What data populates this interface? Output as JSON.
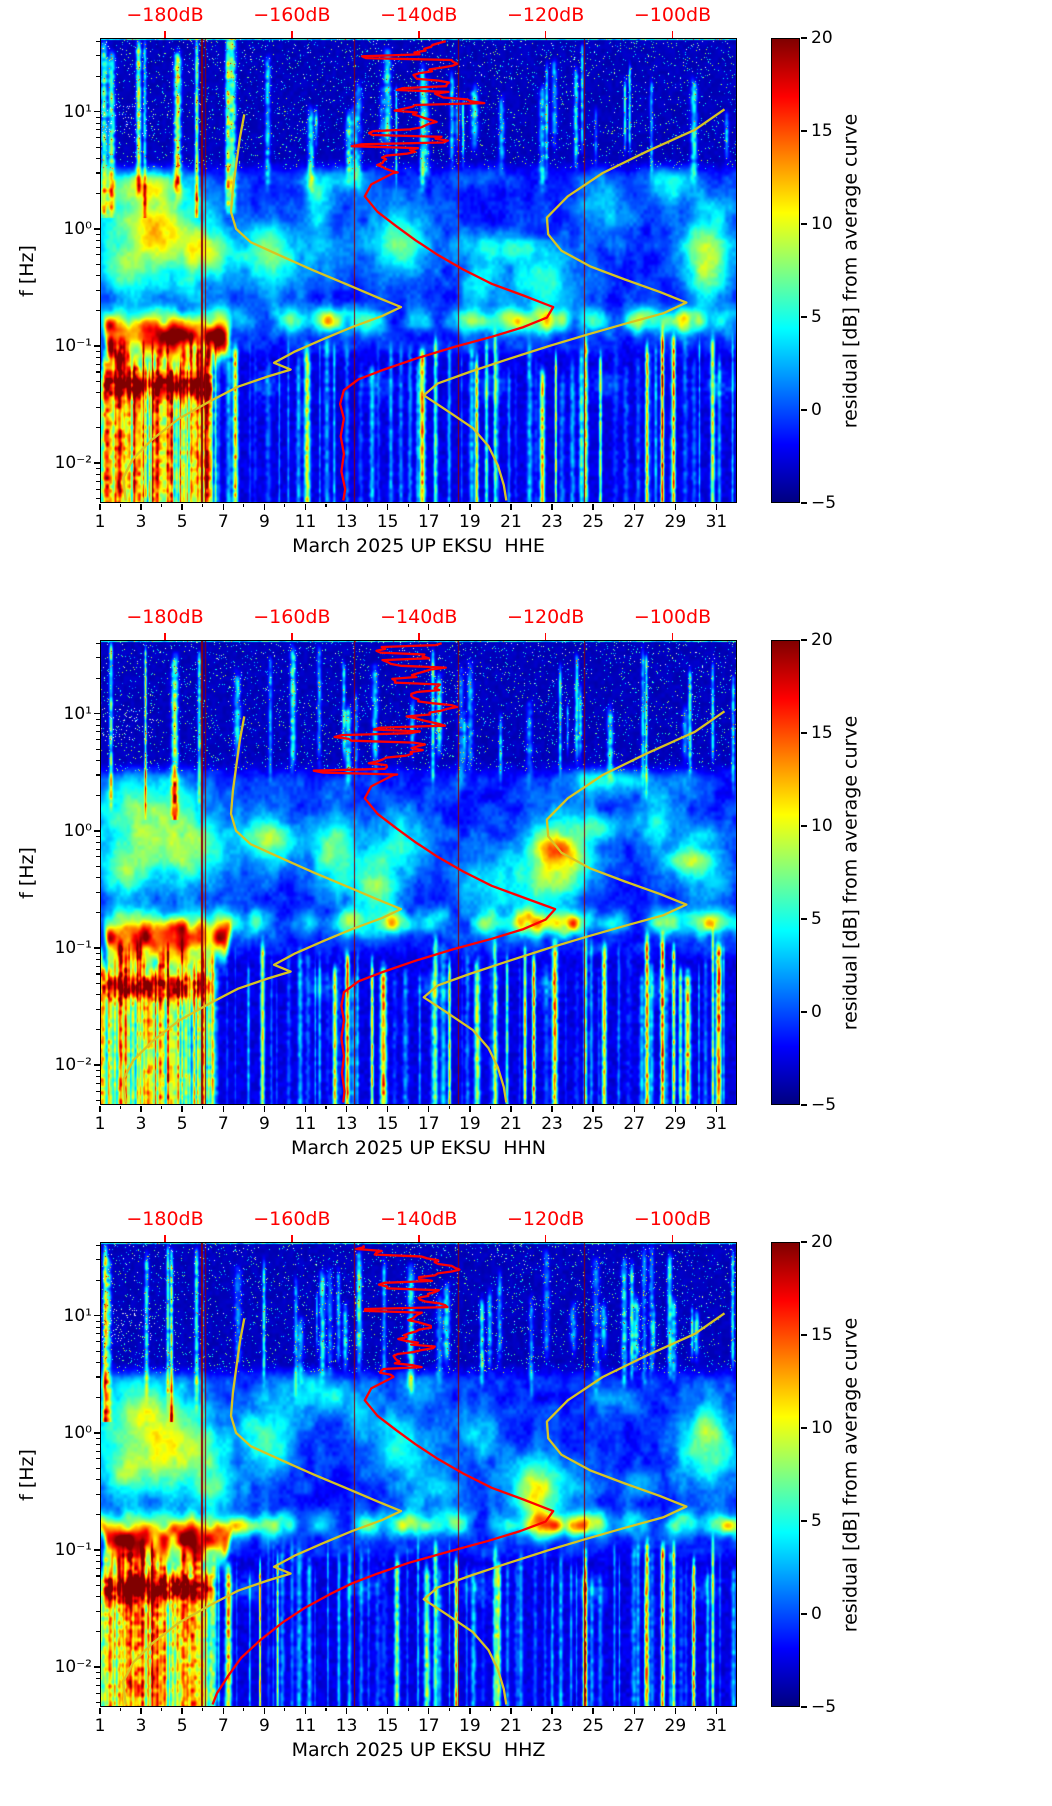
{
  "colors": {
    "background": "#ffffff",
    "axis_text": "#000000",
    "top_axis_label": "#ff0000",
    "average_curve": "#ff0000",
    "noise_model_curve": "#d8c422",
    "calibration_line": "#8b0008",
    "colormap": "jet"
  },
  "chart_data": {
    "type": "heatmap",
    "figure": "3-panel spectrogram of PSD residuals, March 2025, station UP EKSU, channels HHE / HHN / HHZ",
    "x_axis": {
      "ticks": [
        1,
        3,
        5,
        7,
        9,
        11,
        13,
        15,
        17,
        19,
        21,
        23,
        25,
        27,
        29,
        31
      ],
      "minor_ticks": [
        2,
        4,
        6,
        8,
        10,
        12,
        14,
        16,
        18,
        20,
        22,
        24,
        26,
        28,
        30
      ],
      "range_days": [
        1,
        32
      ]
    },
    "y_axis": {
      "label": "f [Hz]",
      "scale": "log",
      "tick_labels": [
        "10¹",
        "10⁰",
        "10⁻¹",
        "10⁻²"
      ],
      "tick_exponents": [
        1,
        0,
        -1,
        -2
      ],
      "range_hz": [
        0.0046,
        42.7
      ]
    },
    "top_axis": {
      "labels": [
        "−180dB",
        "−160dB",
        "−140dB",
        "−120dB",
        "−100dB"
      ],
      "tick_db": [
        -180,
        -160,
        -140,
        -120,
        -100
      ],
      "range_db": [
        -190.25,
        -89.83
      ]
    },
    "colorbar": {
      "title": "residual [dB] from average curve",
      "vmin": -5,
      "vmax": 20,
      "ticks": [
        20,
        15,
        10,
        5,
        0,
        -5
      ],
      "tick_labels": [
        "20",
        "15",
        "10",
        "5",
        "0",
        "−5"
      ]
    },
    "noise_model_curves": {
      "low": [
        [
          9.5,
          -167.5
        ],
        [
          6,
          -168.2
        ],
        [
          3.5,
          -168.8
        ],
        [
          2.2,
          -169.3
        ],
        [
          1.4,
          -169.6
        ],
        [
          1.0,
          -168.8
        ],
        [
          0.77,
          -166.5
        ],
        [
          0.58,
          -161.5
        ],
        [
          0.44,
          -156.5
        ],
        [
          0.33,
          -151
        ],
        [
          0.26,
          -146.5
        ],
        [
          0.215,
          -142.8
        ],
        [
          0.18,
          -145.8
        ],
        [
          0.145,
          -150.5
        ],
        [
          0.115,
          -155
        ],
        [
          0.09,
          -159.5
        ],
        [
          0.072,
          -162.8
        ],
        [
          0.063,
          -160.2
        ],
        [
          0.055,
          -163.8
        ],
        [
          0.045,
          -168.5
        ],
        [
          0.034,
          -172.8
        ],
        [
          0.024,
          -177.8
        ],
        [
          0.016,
          -182
        ],
        [
          0.011,
          -185
        ],
        [
          0.0075,
          -186.6
        ],
        [
          0.0048,
          -186.2
        ]
      ],
      "high": [
        [
          10.5,
          -91.8
        ],
        [
          7,
          -96.5
        ],
        [
          4.6,
          -104
        ],
        [
          3.0,
          -111
        ],
        [
          1.9,
          -116.5
        ],
        [
          1.25,
          -119.8
        ],
        [
          0.9,
          -119.6
        ],
        [
          0.65,
          -117.5
        ],
        [
          0.48,
          -113
        ],
        [
          0.37,
          -107.5
        ],
        [
          0.29,
          -102
        ],
        [
          0.235,
          -97.8
        ],
        [
          0.19,
          -101.5
        ],
        [
          0.155,
          -107.5
        ],
        [
          0.125,
          -113.5
        ],
        [
          0.098,
          -120
        ],
        [
          0.077,
          -126
        ],
        [
          0.06,
          -132
        ],
        [
          0.048,
          -137
        ],
        [
          0.038,
          -139.2
        ],
        [
          0.028,
          -135.5
        ],
        [
          0.02,
          -131.5
        ],
        [
          0.014,
          -129
        ],
        [
          0.0095,
          -127.5
        ],
        [
          0.0065,
          -126.6
        ],
        [
          0.0048,
          -126.2
        ]
      ]
    },
    "panels": [
      {
        "channel": "HHE",
        "xlabel": "March 2025 UP EKSU  HHE",
        "seed": 101,
        "calibration_lines_days": [
          [
            5.9,
            2
          ],
          [
            6.1,
            1
          ],
          [
            13.35,
            1
          ],
          [
            18.42,
            1
          ],
          [
            24.55,
            1
          ]
        ],
        "average_psd_db": [
          [
            40,
            -136
          ],
          [
            32,
            -139
          ],
          [
            26,
            -134.5
          ],
          [
            21,
            -140
          ],
          [
            17,
            -136
          ],
          [
            14,
            -140.5
          ],
          [
            11.5,
            -135.5
          ],
          [
            9.5,
            -141
          ],
          [
            8,
            -137
          ],
          [
            6.5,
            -142
          ],
          [
            5.5,
            -138.5
          ],
          [
            4.5,
            -143
          ],
          [
            3.8,
            -145.5
          ],
          [
            3,
            -144
          ],
          [
            2.4,
            -147.5
          ],
          [
            1.9,
            -148.5
          ],
          [
            1.4,
            -146.5
          ],
          [
            1.05,
            -143.5
          ],
          [
            0.8,
            -140.5
          ],
          [
            0.6,
            -137
          ],
          [
            0.45,
            -133
          ],
          [
            0.34,
            -128.5
          ],
          [
            0.27,
            -123.5
          ],
          [
            0.215,
            -118.8
          ],
          [
            0.175,
            -119.8
          ],
          [
            0.145,
            -123.5
          ],
          [
            0.12,
            -128.5
          ],
          [
            0.098,
            -134.5
          ],
          [
            0.078,
            -140.5
          ],
          [
            0.063,
            -145.5
          ],
          [
            0.052,
            -149.5
          ],
          [
            0.042,
            -151.8
          ],
          [
            0.032,
            -152.4
          ],
          [
            0.024,
            -151.8
          ],
          [
            0.017,
            -152.3
          ],
          [
            0.012,
            -151.8
          ],
          [
            0.0085,
            -152.2
          ],
          [
            0.006,
            -151.6
          ],
          [
            0.0048,
            -151.9
          ]
        ],
        "features": {
          "strong_microseism_days": [
            1.2,
            7.3
          ],
          "microseism_band_hz": [
            0.08,
            0.22
          ],
          "secondary_band_hz": [
            0.03,
            0.07
          ],
          "quiet_band_above_hz": 3,
          "low_freq_streaks_below_hz": 0.09,
          "daily_transient_stripes": true
        }
      },
      {
        "channel": "HHN",
        "xlabel": "March 2025 UP EKSU  HHN",
        "seed": 257,
        "calibration_lines_days": [
          [
            5.9,
            2
          ],
          [
            6.1,
            1
          ],
          [
            13.35,
            1
          ],
          [
            18.42,
            1
          ],
          [
            24.55,
            1
          ]
        ],
        "average_psd_db": [
          [
            40,
            -136
          ],
          [
            32,
            -139.5
          ],
          [
            26,
            -134.5
          ],
          [
            21,
            -140
          ],
          [
            17,
            -136.5
          ],
          [
            14,
            -140.5
          ],
          [
            11.5,
            -135.5
          ],
          [
            9.5,
            -141
          ],
          [
            8,
            -137
          ],
          [
            6.5,
            -142
          ],
          [
            5.5,
            -138.5
          ],
          [
            4.5,
            -143
          ],
          [
            3.8,
            -145.5
          ],
          [
            3,
            -144
          ],
          [
            2.4,
            -147.5
          ],
          [
            1.9,
            -148.5
          ],
          [
            1.4,
            -146.5
          ],
          [
            1.05,
            -143.5
          ],
          [
            0.8,
            -140.5
          ],
          [
            0.6,
            -137
          ],
          [
            0.45,
            -133
          ],
          [
            0.34,
            -128.5
          ],
          [
            0.27,
            -123.5
          ],
          [
            0.215,
            -118.5
          ],
          [
            0.175,
            -120
          ],
          [
            0.145,
            -123.5
          ],
          [
            0.12,
            -128.5
          ],
          [
            0.098,
            -134.5
          ],
          [
            0.078,
            -140.5
          ],
          [
            0.063,
            -145.5
          ],
          [
            0.052,
            -149.5
          ],
          [
            0.042,
            -151.8
          ],
          [
            0.032,
            -152.2
          ],
          [
            0.024,
            -151.8
          ],
          [
            0.017,
            -152.2
          ],
          [
            0.012,
            -151.8
          ],
          [
            0.0085,
            -152.1
          ],
          [
            0.006,
            -151.7
          ],
          [
            0.0048,
            -151.9
          ]
        ],
        "features": {
          "strong_microseism_days": [
            1.2,
            7.3
          ],
          "microseism_band_hz": [
            0.08,
            0.22
          ],
          "secondary_band_hz": [
            0.03,
            0.07
          ],
          "quiet_band_above_hz": 3,
          "low_freq_streaks_below_hz": 0.09,
          "daily_transient_stripes": true
        }
      },
      {
        "channel": "HHZ",
        "xlabel": "March 2025 UP EKSU  HHZ",
        "seed": 661,
        "calibration_lines_days": [
          [
            5.9,
            2
          ],
          [
            6.1,
            1
          ],
          [
            13.35,
            1
          ],
          [
            18.42,
            1
          ],
          [
            24.55,
            1
          ]
        ],
        "average_psd_db": [
          [
            40,
            -136
          ],
          [
            32,
            -139
          ],
          [
            26,
            -134.5
          ],
          [
            21,
            -140
          ],
          [
            17,
            -136
          ],
          [
            14,
            -140.5
          ],
          [
            11.5,
            -135.5
          ],
          [
            9.5,
            -141
          ],
          [
            8,
            -137
          ],
          [
            6.5,
            -142
          ],
          [
            5.5,
            -138.5
          ],
          [
            4.5,
            -143
          ],
          [
            3.8,
            -145.5
          ],
          [
            3,
            -144
          ],
          [
            2.4,
            -147.5
          ],
          [
            1.9,
            -148.5
          ],
          [
            1.4,
            -146.5
          ],
          [
            1.05,
            -143.5
          ],
          [
            0.8,
            -140.5
          ],
          [
            0.6,
            -137
          ],
          [
            0.45,
            -133
          ],
          [
            0.34,
            -128.5
          ],
          [
            0.27,
            -123.5
          ],
          [
            0.215,
            -118.8
          ],
          [
            0.175,
            -120
          ],
          [
            0.145,
            -124
          ],
          [
            0.12,
            -129
          ],
          [
            0.098,
            -135
          ],
          [
            0.078,
            -141.5
          ],
          [
            0.063,
            -146.5
          ],
          [
            0.052,
            -150.5
          ],
          [
            0.042,
            -154
          ],
          [
            0.032,
            -158
          ],
          [
            0.024,
            -161.5
          ],
          [
            0.017,
            -165
          ],
          [
            0.012,
            -168
          ],
          [
            0.0085,
            -170
          ],
          [
            0.006,
            -171.8
          ],
          [
            0.0048,
            -172.5
          ]
        ],
        "features": {
          "strong_microseism_days": [
            1.2,
            7.3
          ],
          "microseism_band_hz": [
            0.08,
            0.22
          ],
          "secondary_band_hz": [
            0.03,
            0.07
          ],
          "quiet_band_above_hz": 3,
          "low_freq_streaks_below_hz": 0.09,
          "daily_transient_stripes": true
        }
      }
    ]
  }
}
